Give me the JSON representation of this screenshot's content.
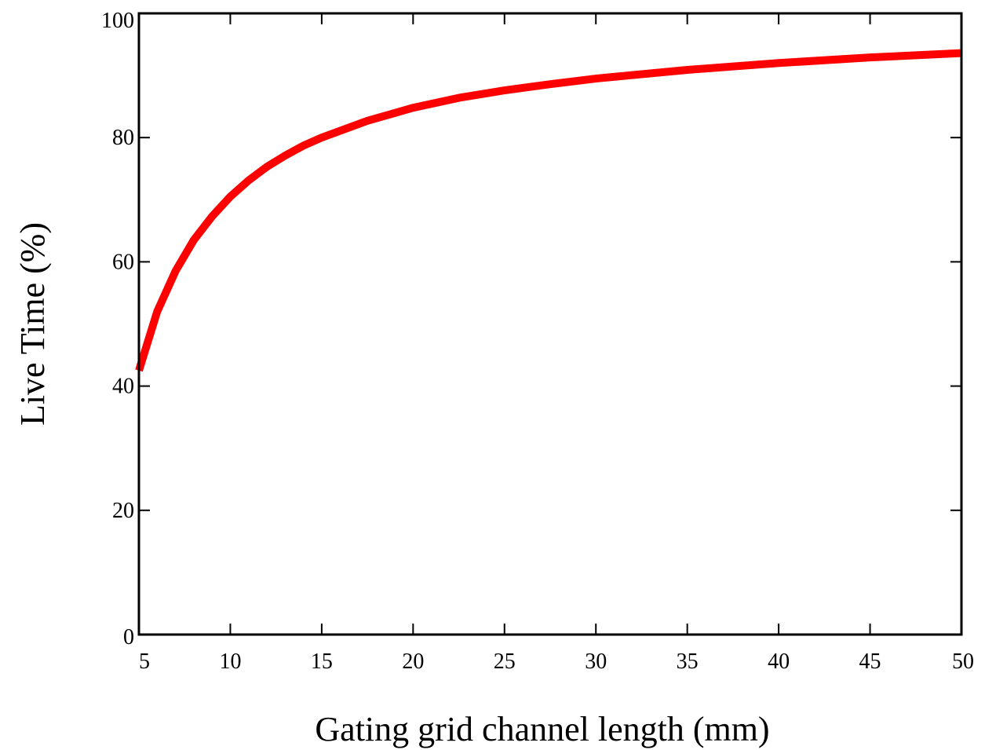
{
  "chart_data": {
    "type": "line",
    "title": "",
    "xlabel": "Gating grid channel length (mm)",
    "ylabel": "Live Time (%)",
    "xlim": [
      5,
      50
    ],
    "ylim": [
      0,
      100
    ],
    "grid": false,
    "x_ticks": [
      5,
      10,
      15,
      20,
      25,
      30,
      35,
      40,
      45,
      50
    ],
    "x_tick_labels": [
      "5",
      "10",
      "15",
      "20",
      "25",
      "30",
      "35",
      "40",
      "45",
      "50"
    ],
    "y_ticks": [
      0,
      20,
      40,
      60,
      80,
      100
    ],
    "y_tick_labels": [
      "0",
      "20",
      "40",
      "60",
      "80",
      "100"
    ],
    "series": [
      {
        "color": "#ff0000",
        "x": [
          5,
          6,
          7,
          8,
          9,
          10,
          11,
          12,
          13,
          14,
          15,
          17.5,
          20,
          22.5,
          25,
          27.5,
          30,
          35,
          40,
          45,
          50
        ],
        "y": [
          42.5,
          52,
          58.5,
          63.5,
          67.3,
          70.5,
          73.1,
          75.3,
          77.1,
          78.7,
          80.0,
          82.7,
          84.8,
          86.4,
          87.6,
          88.6,
          89.5,
          90.9,
          92.0,
          92.9,
          93.6
        ]
      }
    ]
  }
}
